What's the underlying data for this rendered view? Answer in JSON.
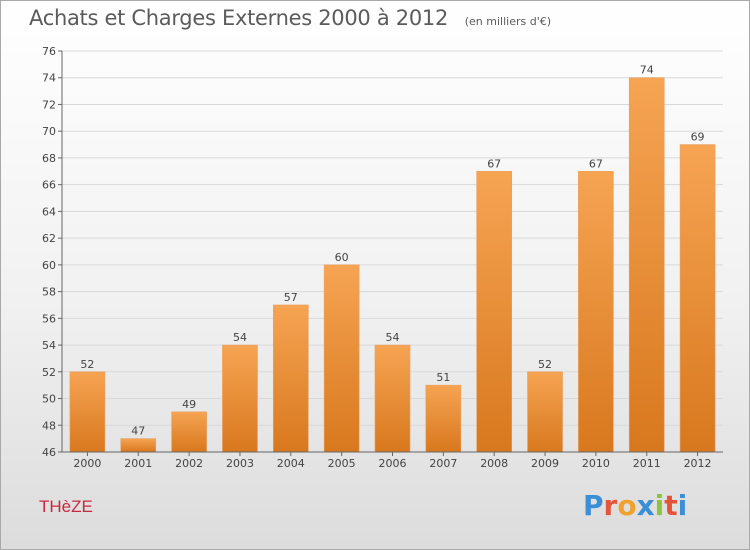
{
  "header": {
    "title": "Achats et Charges Externes 2000 à 2012",
    "unit": "(en milliers d'€)"
  },
  "footer": {
    "commune": "THèZE",
    "brand": "Proxiti",
    "brand_colors": [
      "#3a8fd6",
      "#e4543a",
      "#f0a22e",
      "#3a8fd6",
      "#8bc53f",
      "#e4543a",
      "#3a8fd6"
    ]
  },
  "colors": {
    "bar_top": "#f6a453",
    "bar_bottom": "#d8781e",
    "grid": "#d9d9d9",
    "axis": "#666666",
    "commune": "#c8293f"
  },
  "chart_data": {
    "type": "bar",
    "title": "Achats et Charges Externes 2000 à 2012",
    "categories": [
      "2000",
      "2001",
      "2002",
      "2003",
      "2004",
      "2005",
      "2006",
      "2007",
      "2008",
      "2009",
      "2010",
      "2011",
      "2012"
    ],
    "values": [
      52,
      47,
      49,
      54,
      57,
      60,
      54,
      51,
      67,
      52,
      67,
      74,
      69
    ],
    "ylim": [
      46,
      76
    ],
    "yticks": [
      46,
      48,
      50,
      52,
      54,
      56,
      58,
      60,
      62,
      64,
      66,
      68,
      70,
      72,
      74,
      76
    ],
    "xlabel": "",
    "ylabel": "",
    "grid": true,
    "data_labels": true
  }
}
